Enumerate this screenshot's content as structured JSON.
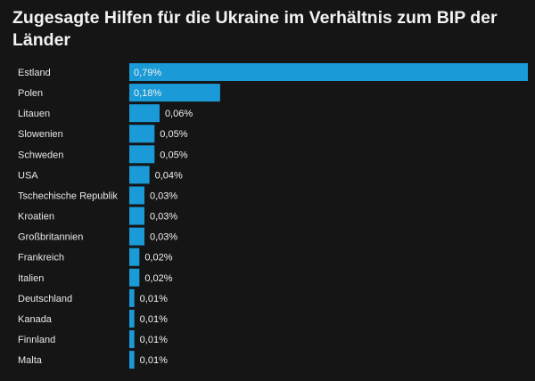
{
  "chart_data": {
    "type": "bar",
    "orientation": "horizontal",
    "title": "Zugesagte Hilfen für die Ukraine im Verhältnis zum BIP der Länder",
    "categories": [
      "Estland",
      "Polen",
      "Litauen",
      "Slowenien",
      "Schweden",
      "USA",
      "Tschechische Republik",
      "Kroatien",
      "Großbritannien",
      "Frankreich",
      "Italien",
      "Deutschland",
      "Kanada",
      "Finnland",
      "Malta"
    ],
    "values": [
      0.79,
      0.18,
      0.06,
      0.05,
      0.05,
      0.04,
      0.03,
      0.03,
      0.03,
      0.02,
      0.02,
      0.01,
      0.01,
      0.01,
      0.01
    ],
    "labels": [
      "0,79%",
      "0,18%",
      "0,06%",
      "0,05%",
      "0,05%",
      "0,04%",
      "0,03%",
      "0,03%",
      "0,03%",
      "0,02%",
      "0,02%",
      "0,01%",
      "0,01%",
      "0,01%",
      "0,01%"
    ],
    "unit": "%",
    "xlim": [
      0,
      0.79
    ],
    "grid": false,
    "bar_color": "#1a9bd7",
    "background": "#151515"
  }
}
